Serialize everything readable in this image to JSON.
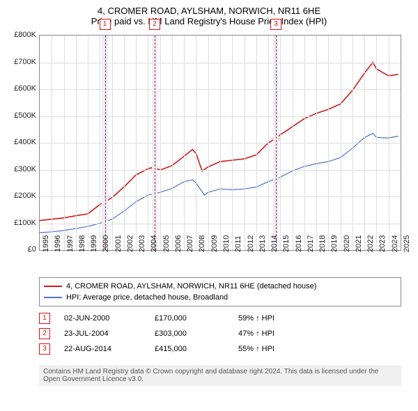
{
  "title_line1": "4, CROMER ROAD, AYLSHAM, NORWICH, NR11 6HE",
  "title_line2": "Price paid vs. HM Land Registry's House Price Index (HPI)",
  "chart": {
    "type": "line",
    "x_min": 1995,
    "x_max": 2025,
    "y_min": 0,
    "y_max": 800000,
    "y_tick_step": 100000,
    "y_prefix": "£",
    "y_suffix": "K",
    "x_ticks": [
      1995,
      1996,
      1997,
      1998,
      1999,
      2000,
      2001,
      2002,
      2003,
      2004,
      2005,
      2006,
      2007,
      2008,
      2009,
      2010,
      2011,
      2012,
      2013,
      2014,
      2015,
      2016,
      2017,
      2018,
      2019,
      2020,
      2021,
      2022,
      2023,
      2024,
      2025
    ],
    "grid_color": "#dddddd",
    "series": [
      {
        "name": "price_paid",
        "color": "#d11919",
        "width": 1.6,
        "points": [
          [
            1995,
            110000
          ],
          [
            1996,
            115000
          ],
          [
            1997,
            120000
          ],
          [
            1998,
            128000
          ],
          [
            1999,
            135000
          ],
          [
            2000,
            170000
          ],
          [
            2001,
            195000
          ],
          [
            2002,
            235000
          ],
          [
            2003,
            280000
          ],
          [
            2004,
            303000
          ],
          [
            2004.5,
            310000
          ],
          [
            2005,
            298000
          ],
          [
            2006,
            315000
          ],
          [
            2007,
            350000
          ],
          [
            2007.7,
            375000
          ],
          [
            2008,
            360000
          ],
          [
            2008.5,
            295000
          ],
          [
            2009,
            310000
          ],
          [
            2010,
            330000
          ],
          [
            2011,
            335000
          ],
          [
            2012,
            340000
          ],
          [
            2013,
            355000
          ],
          [
            2014,
            400000
          ],
          [
            2014.6,
            415000
          ],
          [
            2015,
            430000
          ],
          [
            2016,
            460000
          ],
          [
            2017,
            490000
          ],
          [
            2018,
            510000
          ],
          [
            2019,
            525000
          ],
          [
            2020,
            545000
          ],
          [
            2021,
            595000
          ],
          [
            2022,
            660000
          ],
          [
            2022.7,
            700000
          ],
          [
            2023,
            675000
          ],
          [
            2024,
            650000
          ],
          [
            2024.8,
            655000
          ]
        ]
      },
      {
        "name": "hpi",
        "color": "#4a74c9",
        "width": 1.2,
        "points": [
          [
            1995,
            65000
          ],
          [
            1996,
            68000
          ],
          [
            1997,
            73000
          ],
          [
            1998,
            80000
          ],
          [
            1999,
            88000
          ],
          [
            2000,
            100000
          ],
          [
            2001,
            115000
          ],
          [
            2002,
            145000
          ],
          [
            2003,
            180000
          ],
          [
            2004,
            205000
          ],
          [
            2005,
            215000
          ],
          [
            2006,
            230000
          ],
          [
            2007,
            255000
          ],
          [
            2007.7,
            262000
          ],
          [
            2008,
            250000
          ],
          [
            2008.7,
            205000
          ],
          [
            2009,
            215000
          ],
          [
            2010,
            228000
          ],
          [
            2011,
            225000
          ],
          [
            2012,
            228000
          ],
          [
            2013,
            235000
          ],
          [
            2014,
            255000
          ],
          [
            2015,
            272000
          ],
          [
            2016,
            295000
          ],
          [
            2017,
            312000
          ],
          [
            2018,
            322000
          ],
          [
            2019,
            330000
          ],
          [
            2020,
            345000
          ],
          [
            2021,
            380000
          ],
          [
            2022,
            420000
          ],
          [
            2022.7,
            435000
          ],
          [
            2023,
            420000
          ],
          [
            2024,
            418000
          ],
          [
            2024.8,
            425000
          ]
        ]
      }
    ],
    "markers": [
      {
        "n": "1",
        "x": 2000.42,
        "y": 170000
      },
      {
        "n": "2",
        "x": 2004.56,
        "y": 303000
      },
      {
        "n": "3",
        "x": 2014.64,
        "y": 415000
      }
    ],
    "band_width_years": 0.5
  },
  "legend": {
    "items": [
      {
        "color": "#d11919",
        "label": "4, CROMER ROAD, AYLSHAM, NORWICH, NR11 6HE (detached house)"
      },
      {
        "color": "#4a74c9",
        "label": "HPI: Average price, detached house, Broadland"
      }
    ]
  },
  "events": [
    {
      "n": "1",
      "date": "02-JUN-2000",
      "price": "£170,000",
      "delta": "59% ↑ HPI"
    },
    {
      "n": "2",
      "date": "23-JUL-2004",
      "price": "£303,000",
      "delta": "47% ↑ HPI"
    },
    {
      "n": "3",
      "date": "22-AUG-2014",
      "price": "£415,000",
      "delta": "55% ↑ HPI"
    }
  ],
  "footer": "Contains HM Land Registry data © Crown copyright and database right 2024. This data is licensed under the Open Government Licence v3.0."
}
